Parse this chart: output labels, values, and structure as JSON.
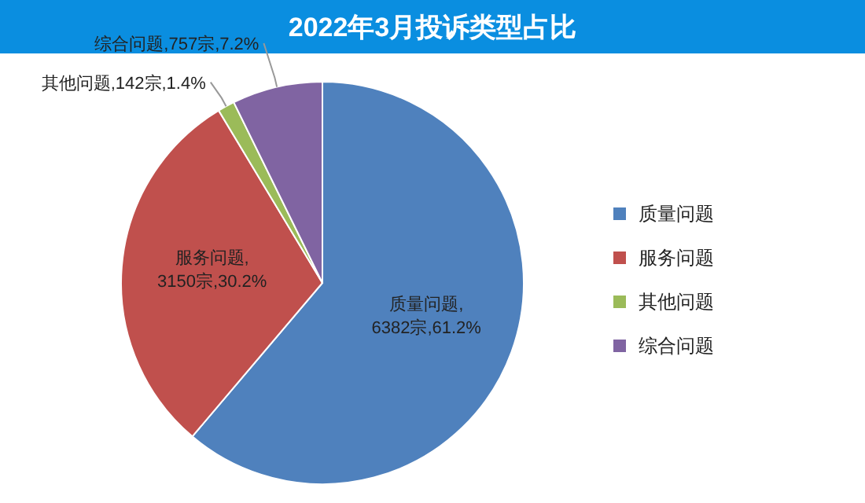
{
  "chart_data": {
    "type": "pie",
    "title": "2022年3月投诉类型占比",
    "categories": [
      "质量问题",
      "服务问题",
      "其他问题",
      "综合问题"
    ],
    "values": [
      6382,
      3150,
      142,
      757
    ],
    "colors": [
      "#4f81bd",
      "#c0504d",
      "#9bbb59",
      "#8064a2"
    ],
    "value_labels": [
      "质量问题,\n6382宗,61.2%",
      "服务问题,\n3150宗,30.2%",
      "其他问题,142宗,1.4%",
      "综合问题,757宗,7.2%"
    ],
    "legend": "right"
  }
}
